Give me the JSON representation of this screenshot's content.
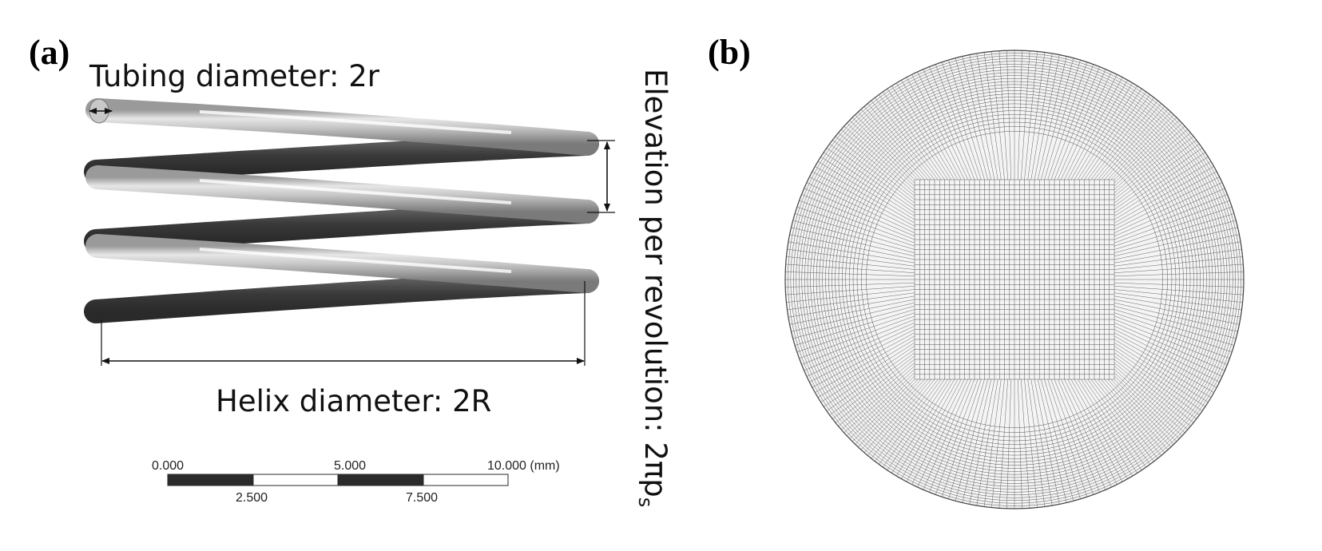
{
  "panel_a": {
    "label": "(a)",
    "tubing_label": "Tubing diameter: 2r",
    "helix_label": "Helix diameter: 2R",
    "elevation_label": "Elevation per revolution: 2πp",
    "elevation_subscript": "s",
    "scale_bar": {
      "top_labels": [
        "0.000",
        "5.000",
        "10.000 (mm)"
      ],
      "bottom_labels": [
        "2.500",
        "7.500"
      ]
    }
  },
  "panel_b": {
    "label": "(b)"
  },
  "colors": {
    "tube_dark": "#3a3a3a",
    "tube_light": "#d8d8d8",
    "mesh_line": "#555555"
  }
}
